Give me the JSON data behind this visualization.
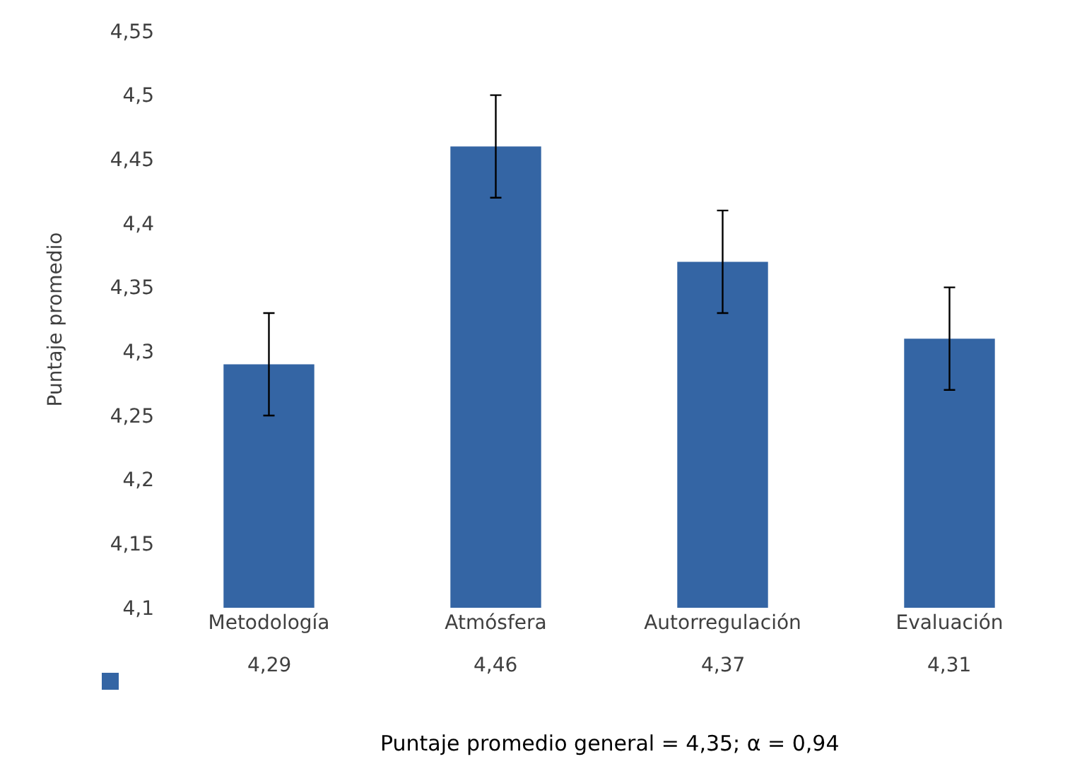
{
  "chart_data": {
    "type": "bar",
    "ylabel": "Puntaje promedio",
    "categories": [
      "Metodología",
      "Atmósfera",
      "Autorregulación",
      "Evaluación"
    ],
    "values": [
      4.29,
      4.46,
      4.37,
      4.31
    ],
    "errors": [
      0.04,
      0.04,
      0.04,
      0.04
    ],
    "color": "#3465a4",
    "ylim": [
      4.1,
      4.55
    ],
    "yticks": [
      {
        "value": 4.1,
        "label": "4,1"
      },
      {
        "value": 4.15,
        "label": "4,15"
      },
      {
        "value": 4.2,
        "label": "4,2"
      },
      {
        "value": 4.25,
        "label": "4,25"
      },
      {
        "value": 4.3,
        "label": "4,3"
      },
      {
        "value": 4.35,
        "label": "4,35"
      },
      {
        "value": 4.4,
        "label": "4,4"
      },
      {
        "value": 4.45,
        "label": "4,45"
      },
      {
        "value": 4.5,
        "label": "4,5"
      },
      {
        "value": 4.55,
        "label": "4,55"
      }
    ],
    "value_labels": [
      "4,29",
      "4,46",
      "4,37",
      "4,31"
    ],
    "grid": false,
    "annotations": [
      "Puntaje promedio general = 4,35; α = 0,94"
    ]
  }
}
